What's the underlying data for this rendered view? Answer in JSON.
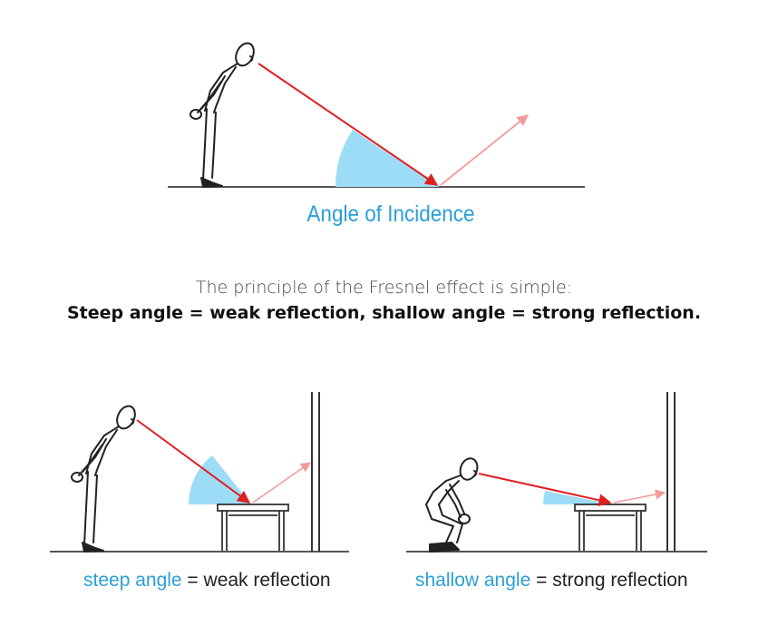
{
  "top_diagram": {
    "caption": "Angle of Incidence"
  },
  "principle": {
    "intro": "The principle of the Fresnel effect is simple:",
    "rule": "Steep angle = weak reflection, shallow angle = strong reflection."
  },
  "left_diagram": {
    "caption_highlight": "steep angle",
    "caption_rest": " = weak reflection"
  },
  "right_diagram": {
    "caption_highlight": "shallow angle",
    "caption_rest": " = strong reflection"
  },
  "colors": {
    "incident_ray": "#e02020",
    "reflected_ray": "#f29a9a",
    "angle_fill": "#9ddcf7",
    "caption_accent": "#2a9fd8"
  }
}
